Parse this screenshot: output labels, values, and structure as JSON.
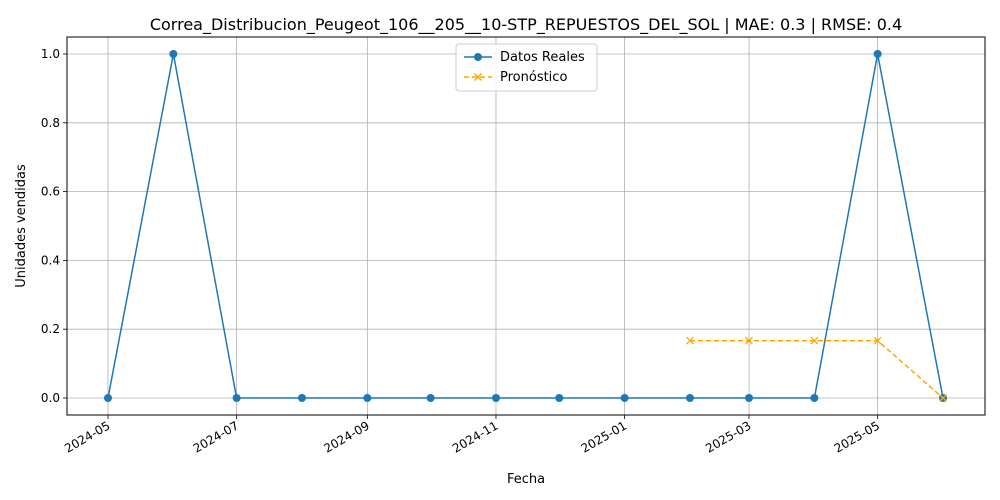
{
  "chart_data": {
    "type": "line",
    "title": "Correa_Distribucion_Peugeot_106__205__10-STP_REPUESTOS_DEL_SOL | MAE: 0.3 | RMSE: 0.4",
    "xlabel": "Fecha",
    "ylabel": "Unidades vendidas",
    "ylim": [
      -0.05,
      1.05
    ],
    "grid": true,
    "legend_position": "top-center",
    "x_ticks": [
      "2024-05",
      "2024-07",
      "2024-09",
      "2024-11",
      "2025-01",
      "2025-03",
      "2025-05"
    ],
    "y_ticks": [
      "0.0",
      "0.2",
      "0.4",
      "0.6",
      "0.8",
      "1.0"
    ],
    "series": [
      {
        "name": "Datos Reales",
        "color": "#1f77b4",
        "marker": "circle",
        "style": "solid",
        "x": [
          "2024-05-01",
          "2024-06-01",
          "2024-07-01",
          "2024-08-01",
          "2024-09-01",
          "2024-10-01",
          "2024-11-01",
          "2024-12-01",
          "2025-01-01",
          "2025-02-01",
          "2025-03-01",
          "2025-04-01",
          "2025-05-01",
          "2025-06-01"
        ],
        "values": [
          0,
          1,
          0,
          0,
          0,
          0,
          0,
          0,
          0,
          0,
          0,
          0,
          1,
          0
        ]
      },
      {
        "name": "Pronóstico",
        "color": "#ffa500",
        "marker": "x",
        "style": "dashed",
        "x": [
          "2025-02-01",
          "2025-03-01",
          "2025-04-01",
          "2025-05-01",
          "2025-06-01"
        ],
        "values": [
          0.1667,
          0.1667,
          0.1667,
          0.1667,
          0
        ]
      }
    ]
  }
}
